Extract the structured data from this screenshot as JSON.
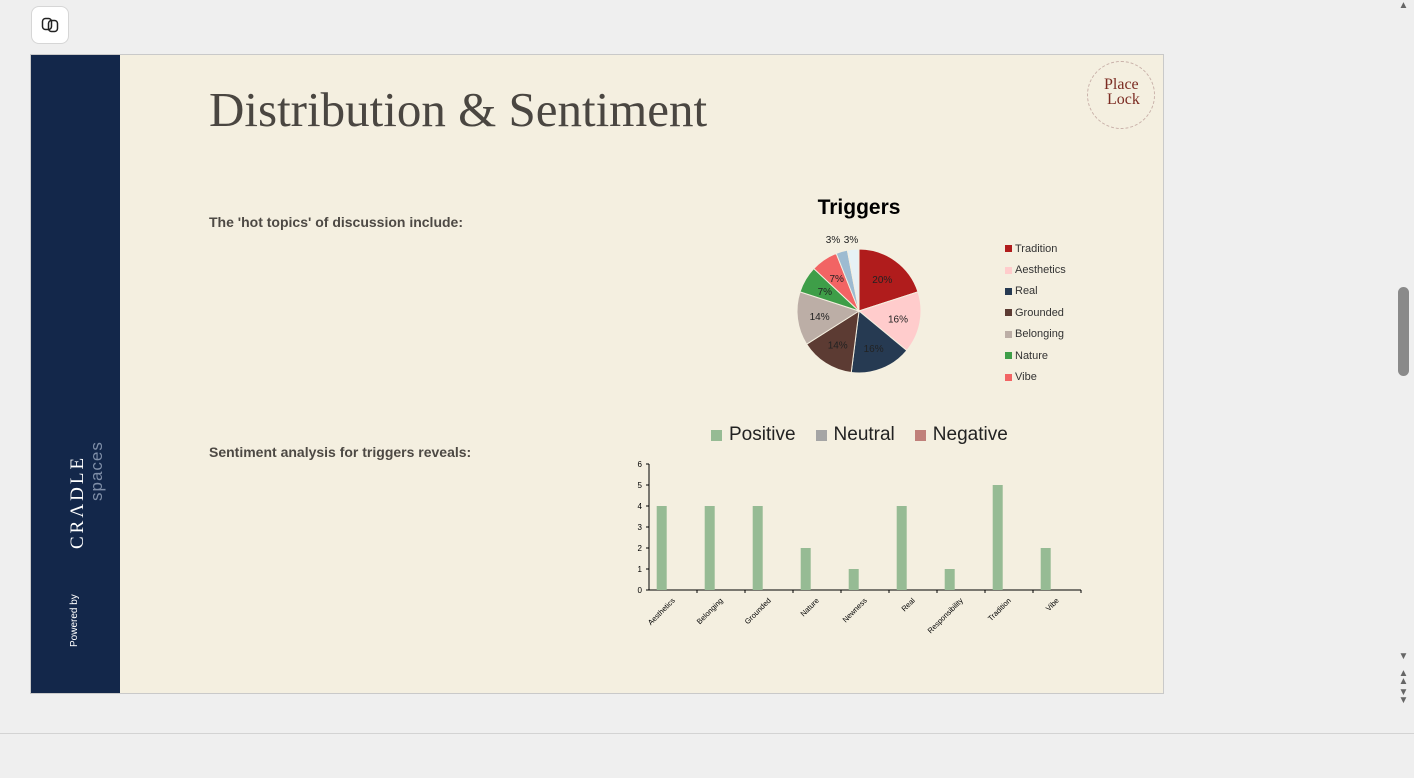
{
  "slide": {
    "title": "Distribution & Sentiment",
    "point1": "The 'hot topics' of discussion include:",
    "point2": "Sentiment analysis for triggers reveals:",
    "sidebar": {
      "brand_word1": "CRΛDLE",
      "brand_word2": "spaces",
      "powered_by": "Powered by"
    },
    "logo": {
      "line1": "Place",
      "line2": "Lock"
    }
  },
  "icons": {
    "copilot": "copilot-icon",
    "scroll_up": "scroll-up-arrow-icon",
    "scroll_down": "scroll-down-arrow-icon",
    "prev_page": "previous-page-icon",
    "next_page": "next-page-icon"
  },
  "colors": {
    "sidebar": "#13274a",
    "slide_background": "#f4efe0",
    "positive": "#96bb94",
    "neutral": "#a5a5a5",
    "negative": "#c0807a"
  },
  "chart_data": [
    {
      "type": "pie",
      "title": "Triggers",
      "slices": [
        {
          "label": "Tradition",
          "value": 20,
          "text": "20%",
          "color": "#b01c1c"
        },
        {
          "label": "Aesthetics",
          "value": 16,
          "text": "16%",
          "color": "#ffcccc"
        },
        {
          "label": "Real",
          "value": 16,
          "text": "16%",
          "color": "#263a52"
        },
        {
          "label": "Grounded",
          "value": 14,
          "text": "14%",
          "color": "#5c3b33"
        },
        {
          "label": "Belonging",
          "value": 14,
          "text": "14%",
          "color": "#bcaea6"
        },
        {
          "label": "Nature",
          "value": 7,
          "text": "7%",
          "color": "#3e9e48"
        },
        {
          "label": "Vibe",
          "value": 7,
          "text": "7%",
          "color": "#f26464"
        },
        {
          "label": "",
          "value": 3,
          "text": "3%",
          "color": "#9dbbd1"
        },
        {
          "label": "",
          "value": 3,
          "text": "3%",
          "color": "#e6f1f5"
        }
      ],
      "legend": [
        "Tradition",
        "Aesthetics",
        "Real",
        "Grounded",
        "Belonging",
        "Nature",
        "Vibe"
      ],
      "legend_position": "right"
    },
    {
      "type": "bar",
      "categories": [
        "Aesthetics",
        "Belonging",
        "Grounded",
        "Nature",
        "Newness",
        "Real",
        "Responsibility",
        "Tradition",
        "Vibe"
      ],
      "series": [
        {
          "name": "Positive",
          "values": [
            4,
            4,
            4,
            2,
            1,
            4,
            1,
            5,
            2
          ]
        },
        {
          "name": "Neutral",
          "values": [
            0,
            0,
            0,
            0,
            0,
            0,
            0,
            0,
            0
          ]
        },
        {
          "name": "Negative",
          "values": [
            0,
            0,
            0,
            0,
            0,
            0,
            0,
            0,
            0
          ]
        }
      ],
      "ylim": [
        0,
        6
      ],
      "yticks": [
        "0",
        "1",
        "2",
        "3",
        "4",
        "5",
        "6"
      ],
      "legend_position": "top",
      "grid": false
    }
  ]
}
